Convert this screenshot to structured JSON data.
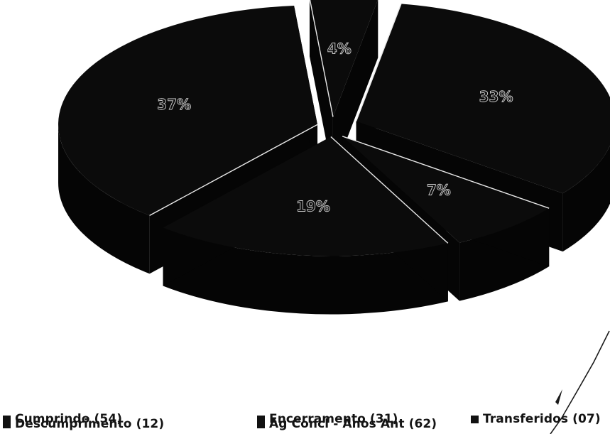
{
  "chart_data": {
    "type": "pie",
    "style": "3d-exploded",
    "title": "",
    "colors": {
      "slice_top": "#0b0b0b",
      "slice_side": "#050505",
      "separator": "#e9e9e9",
      "label_outline": "#cfcfcf",
      "background": "#ffffff"
    },
    "slices": [
      {
        "name": "Cumprindo (54)",
        "value": 54,
        "percent_label": "33%"
      },
      {
        "name": "Descumprimento (12)",
        "value": 12,
        "percent_label": "7%"
      },
      {
        "name": "Encerramento (31)",
        "value": 31,
        "percent_label": "19%"
      },
      {
        "name": "Ag  Concl  - Anos Ant  (62)",
        "value": 62,
        "percent_label": "37%"
      },
      {
        "name": "Transferidos (07)",
        "value": 7,
        "percent_label": "4%"
      }
    ],
    "legend": {
      "placement": "bottom",
      "items": [
        "Cumprindo (54)",
        "Encerramento (31)",
        "Transferidos (07)",
        "Descumprimento (12)",
        "Ag  Concl  - Anos Ant  (62)"
      ]
    }
  }
}
